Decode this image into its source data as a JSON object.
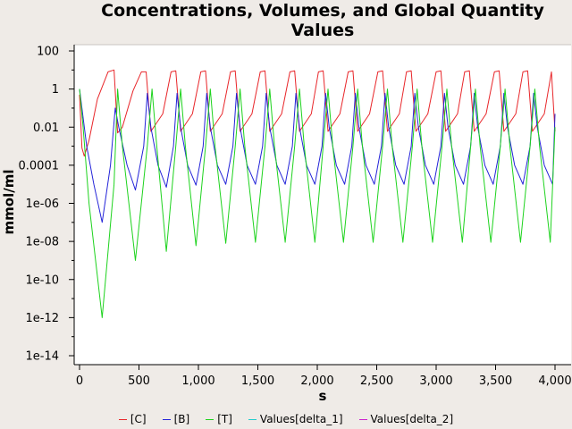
{
  "chart_data": {
    "type": "line",
    "title_lines": [
      "Concentrations, Volumes, and Global Quantity",
      "Values"
    ],
    "xlabel": "s",
    "ylabel": "mmol/ml",
    "xlim": [
      0,
      4000
    ],
    "ylim_log10": [
      -14,
      2
    ],
    "y_scale": "log",
    "grid": false,
    "legend_placement": "bottom",
    "x_ticks": [
      0,
      500,
      1000,
      1500,
      2000,
      2500,
      3000,
      3500,
      4000
    ],
    "x_tick_labels": [
      "0",
      "500",
      "1,000",
      "1,500",
      "2,000",
      "2,500",
      "3,000",
      "3,500",
      "4,000"
    ],
    "y_ticks_log10": [
      2,
      0,
      -2,
      -4,
      -6,
      -8,
      -10,
      -12,
      -14
    ],
    "y_tick_labels": [
      "100",
      "1",
      "0.01",
      "0.0001",
      "1e-06",
      "1e-08",
      "1e-10",
      "1e-12",
      "1e-14"
    ],
    "series": [
      {
        "name": "[C]",
        "color": "#e8262a",
        "x": [
          0,
          20,
          40,
          80,
          150,
          240,
          290,
          320,
          360,
          450,
          520,
          560,
          600,
          700,
          770,
          810,
          850,
          950,
          1020,
          1060,
          1100,
          1200,
          1270,
          1310,
          1350,
          1450,
          1520,
          1560,
          1600,
          1700,
          1770,
          1810,
          1850,
          1950,
          2010,
          2050,
          2090,
          2190,
          2260,
          2300,
          2340,
          2440,
          2510,
          2550,
          2590,
          2690,
          2750,
          2790,
          2830,
          2930,
          3000,
          3040,
          3080,
          3180,
          3240,
          3280,
          3320,
          3420,
          3490,
          3530,
          3570,
          3670,
          3730,
          3770,
          3810,
          3910,
          3970,
          4000
        ],
        "y": [
          0.5,
          0.0008,
          0.0003,
          0.002,
          0.3,
          8,
          10,
          0.005,
          0.01,
          0.8,
          8,
          8,
          0.006,
          0.05,
          8,
          9,
          0.006,
          0.05,
          8,
          9,
          0.006,
          0.05,
          8,
          9,
          0.006,
          0.05,
          8,
          9,
          0.006,
          0.05,
          8,
          9,
          0.006,
          0.05,
          8,
          9,
          0.006,
          0.05,
          8,
          9,
          0.006,
          0.05,
          8,
          9,
          0.006,
          0.05,
          8,
          9,
          0.006,
          0.05,
          8,
          9,
          0.006,
          0.05,
          8,
          9,
          0.006,
          0.05,
          8,
          9,
          0.006,
          0.05,
          8,
          9,
          0.006,
          0.05,
          8,
          0.006
        ]
      },
      {
        "name": "[B]",
        "color": "#2323d8",
        "x": [
          0,
          60,
          120,
          190,
          260,
          300,
          330,
          400,
          470,
          540,
          570,
          600,
          660,
          730,
          790,
          820,
          850,
          910,
          980,
          1040,
          1070,
          1100,
          1160,
          1230,
          1290,
          1320,
          1350,
          1410,
          1480,
          1540,
          1570,
          1600,
          1660,
          1730,
          1790,
          1820,
          1850,
          1910,
          1980,
          2040,
          2070,
          2100,
          2160,
          2230,
          2290,
          2320,
          2350,
          2410,
          2480,
          2540,
          2570,
          2600,
          2660,
          2730,
          2790,
          2820,
          2850,
          2910,
          2980,
          3040,
          3070,
          3100,
          3160,
          3230,
          3290,
          3320,
          3350,
          3410,
          3480,
          3540,
          3570,
          3600,
          3660,
          3730,
          3790,
          3820,
          3850,
          3910,
          3980,
          4000
        ],
        "y": [
          1,
          0.001,
          1e-05,
          1e-07,
          0.0001,
          0.1,
          0.01,
          0.0001,
          5e-06,
          0.001,
          0.6,
          0.01,
          0.0001,
          7e-06,
          0.001,
          0.6,
          0.01,
          0.0001,
          9e-06,
          0.001,
          0.6,
          0.01,
          0.0001,
          1e-05,
          0.001,
          0.6,
          0.01,
          0.0001,
          1e-05,
          0.001,
          0.6,
          0.01,
          0.0001,
          1e-05,
          0.001,
          0.6,
          0.01,
          0.0001,
          1e-05,
          0.001,
          0.6,
          0.01,
          0.0001,
          1e-05,
          0.001,
          0.6,
          0.01,
          0.0001,
          1e-05,
          0.001,
          0.6,
          0.01,
          0.0001,
          1e-05,
          0.001,
          0.6,
          0.01,
          0.0001,
          1e-05,
          0.001,
          0.6,
          0.01,
          0.0001,
          1e-05,
          0.001,
          0.6,
          0.01,
          0.0001,
          1e-05,
          0.001,
          0.6,
          0.01,
          0.0001,
          1e-05,
          0.001,
          0.6,
          0.01,
          0.0001,
          1e-05,
          0.05
        ]
      },
      {
        "name": "[T]",
        "color": "#1ed31e",
        "x": [
          0,
          30,
          80,
          190,
          290,
          320,
          360,
          470,
          570,
          610,
          650,
          730,
          810,
          850,
          890,
          980,
          1060,
          1100,
          1140,
          1230,
          1310,
          1350,
          1390,
          1480,
          1560,
          1600,
          1640,
          1730,
          1810,
          1850,
          1890,
          1980,
          2050,
          2090,
          2130,
          2220,
          2300,
          2340,
          2380,
          2470,
          2550,
          2590,
          2630,
          2720,
          2800,
          2840,
          2880,
          2970,
          3050,
          3090,
          3130,
          3220,
          3290,
          3330,
          3370,
          3460,
          3540,
          3580,
          3620,
          3710,
          3790,
          3830,
          3870,
          3960,
          4000
        ],
        "y": [
          1,
          0.01,
          1e-06,
          1e-12,
          1e-05,
          1,
          0.001,
          1e-09,
          0.001,
          1,
          0.001,
          3e-09,
          0.001,
          1,
          0.001,
          6e-09,
          0.001,
          1,
          0.001,
          8e-09,
          0.001,
          1,
          0.001,
          9e-09,
          0.001,
          1,
          0.001,
          9e-09,
          0.001,
          1,
          0.001,
          9e-09,
          0.001,
          1,
          0.001,
          9e-09,
          0.001,
          1,
          0.001,
          9e-09,
          0.001,
          1,
          0.001,
          9e-09,
          0.001,
          1,
          0.001,
          9e-09,
          0.001,
          1,
          0.001,
          9e-09,
          0.001,
          1,
          0.001,
          9e-09,
          0.001,
          1,
          0.001,
          9e-09,
          0.001,
          1,
          0.001,
          9e-09,
          0.01
        ]
      },
      {
        "name": "Values[delta_1]",
        "color": "#22cccc",
        "x": [],
        "y": []
      },
      {
        "name": "Values[delta_2]",
        "color": "#cc22cc",
        "x": [],
        "y": []
      }
    ]
  }
}
